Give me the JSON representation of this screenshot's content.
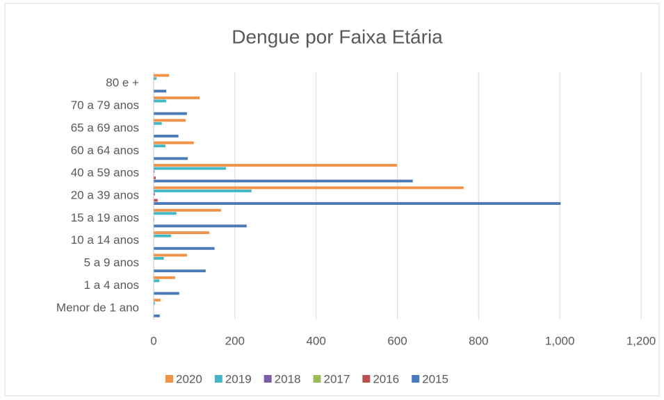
{
  "chart_data": {
    "type": "hbar",
    "title": "Dengue por Faixa Etária",
    "categories": [
      "Menor de 1 ano",
      "1 a 4 anos",
      "5 a 9 anos",
      "10 a 14 anos",
      "15 a 19 anos",
      "20 a 39 anos",
      "40 a 59 anos",
      "60 a 64 anos",
      "65 a 69 anos",
      "70 a 79 anos",
      "80 e +"
    ],
    "series": [
      {
        "name": "2020",
        "color": "#f0924a",
        "values": [
          17,
          53,
          82,
          137,
          166,
          763,
          599,
          99,
          79,
          113,
          38
        ]
      },
      {
        "name": "2019",
        "color": "#42b8c6",
        "values": [
          3,
          14,
          25,
          43,
          56,
          241,
          178,
          29,
          20,
          31,
          7
        ]
      },
      {
        "name": "2018",
        "color": "#7a5ca8",
        "values": [
          0,
          0,
          0,
          0,
          0,
          3,
          2,
          0,
          0,
          0,
          0
        ]
      },
      {
        "name": "2017",
        "color": "#9bbb59",
        "values": [
          0,
          0,
          0,
          0,
          2,
          0,
          0,
          0,
          0,
          0,
          0
        ]
      },
      {
        "name": "2016",
        "color": "#c0504d",
        "values": [
          0,
          0,
          0,
          0,
          0,
          10,
          5,
          0,
          0,
          0,
          0
        ]
      },
      {
        "name": "2015",
        "color": "#4a7ab8",
        "values": [
          15,
          63,
          128,
          150,
          229,
          1002,
          638,
          84,
          61,
          82,
          31
        ]
      }
    ],
    "xlim": [
      0,
      1200
    ],
    "xticks": [
      0,
      200,
      400,
      600,
      800,
      {
        "value": 1000,
        "label": "1,000"
      },
      {
        "value": 1200,
        "label": "1,200"
      }
    ],
    "grid": true,
    "legend": "bottom"
  }
}
